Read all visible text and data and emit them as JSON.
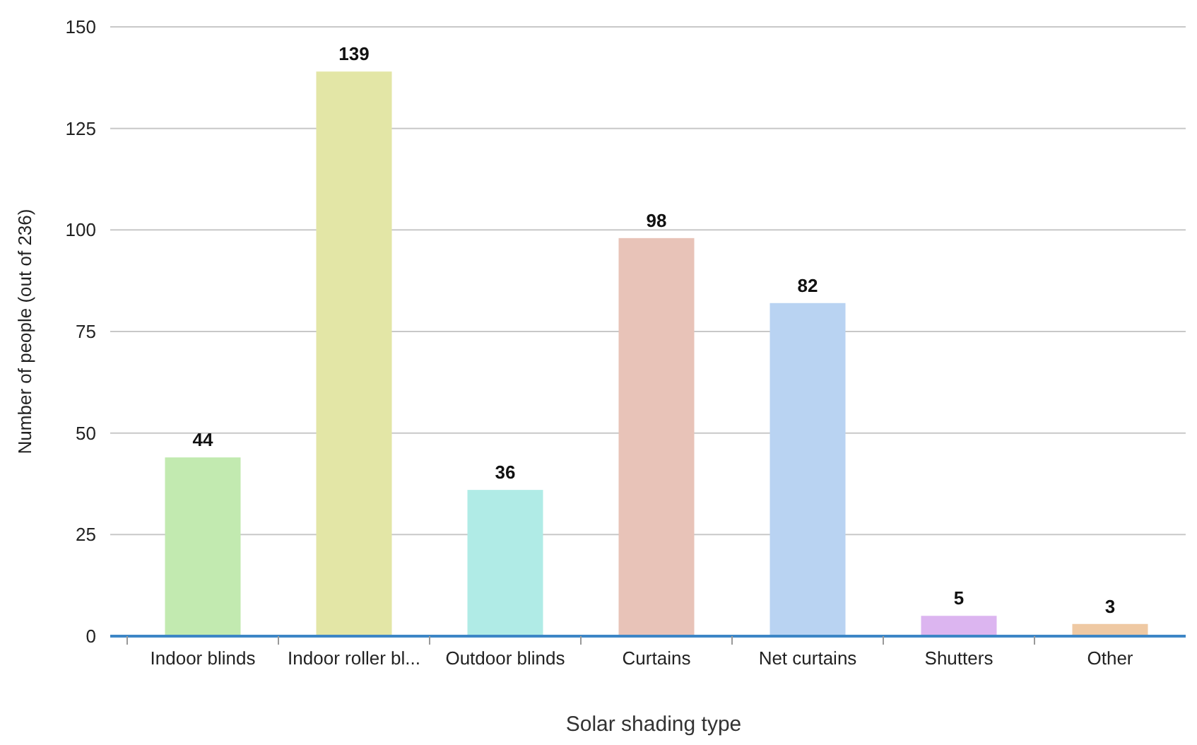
{
  "chart_data": {
    "type": "bar",
    "xlabel": "Solar shading type",
    "ylabel": "Number of people (out of 236)",
    "categories": [
      "Indoor blinds",
      "Indoor roller bl...",
      "Outdoor blinds",
      "Curtains",
      "Net curtains",
      "Shutters",
      "Other"
    ],
    "values": [
      44,
      139,
      36,
      98,
      82,
      5,
      3
    ],
    "colors": [
      "#c2eab0",
      "#e3e6a6",
      "#b0ebe6",
      "#e8c3b8",
      "#b9d3f2",
      "#dcb5f0",
      "#efc9a3"
    ],
    "ylim": [
      0,
      150
    ],
    "yticks": [
      0,
      25,
      50,
      75,
      100,
      125,
      150
    ],
    "grid": "y",
    "data_labels": true
  }
}
